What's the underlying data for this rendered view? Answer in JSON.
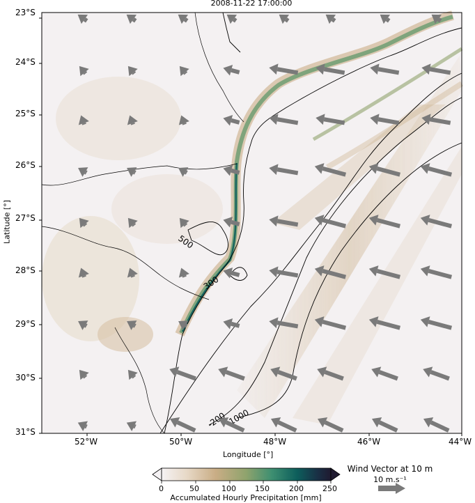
{
  "title": "2008-11-22 17:00:00",
  "axes": {
    "xlabel": "Longitude [°]",
    "ylabel": "Latitude [°]",
    "lat_ticks": [
      "23°S",
      "24°S",
      "25°S",
      "26°S",
      "27°S",
      "28°S",
      "29°S",
      "30°S",
      "31°S"
    ],
    "lon_ticks": [
      "52°W",
      "50°W",
      "48°W",
      "46°W",
      "44°W"
    ]
  },
  "colorbar": {
    "label": "Accumulated Hourly Precipitation [mm]",
    "ticks": [
      "0",
      "50",
      "100",
      "150",
      "200",
      "250"
    ],
    "colors": [
      "#f5f2f4",
      "#e7d8c6",
      "#c9ad85",
      "#8fa36d",
      "#3e8f71",
      "#0d5e5c",
      "#193045",
      "#1f1a30"
    ]
  },
  "wind_key": {
    "title": "Wind Vector at 10 m",
    "unit": "10 m.s⁻¹",
    "color": "#7a7a7a"
  },
  "contour_labels": [
    "500",
    "300",
    "-200",
    "-1000"
  ]
}
